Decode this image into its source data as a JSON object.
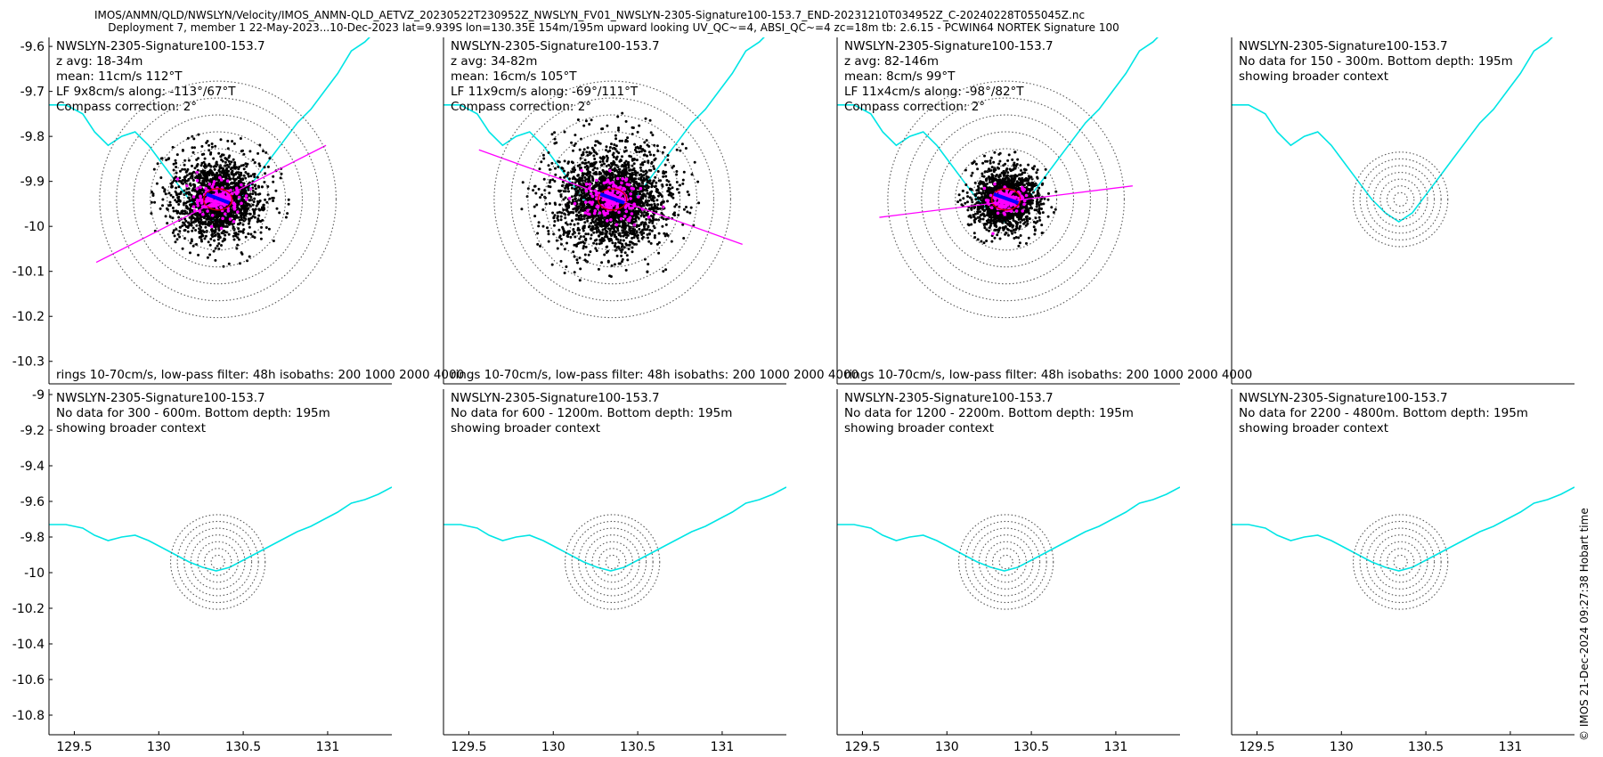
{
  "title": {
    "line1": "IMOS/ANMN/QLD/NWSLYN/Velocity/IMOS_ANMN-QLD_AETVZ_20230522T230952Z_NWSLYN_FV01_NWSLYN-2305-Signature100-153.7_END-20231210T034952Z_C-20240228T055045Z.nc",
    "line2": "Deployment 7, member 1 22-May-2023...10-Dec-2023 lat=9.939S lon=130.35E 154m/195m upward looking UV_QC~=4, ABSI_QC~=4 zc=18m tb: 2.6.15 - PCWIN64 NORTEK Signature 100"
  },
  "footer_stamp": "© IMOS 21-Dec-2024 09:27:38 Hobart time",
  "colors": {
    "scatter": "#000000",
    "highlight": "#ff00ff",
    "isobath": "#00e5e5",
    "mean_arrow": "#0000ff",
    "ellipse": "#cc0000",
    "rings": "#555555"
  },
  "chart_data": [
    {
      "type": "scatter",
      "panel": "top-1",
      "header": [
        "NWSLYN-2305-Signature100-153.7",
        "z avg: 18-34m",
        "mean: 11cm/s 112°T",
        "LF 9x8cm/s along: -113°/67°T",
        "Compass correction: 2°"
      ],
      "footer": "rings 10-70cm/s, low-pass filter: 48h isobaths: 200 1000 2000 4000",
      "xlim": [
        129.35,
        131.38
      ],
      "ylim": [
        -10.35,
        -9.58
      ],
      "yticks": [
        -9.6,
        -9.7,
        -9.8,
        -9.9,
        -10,
        -10.1,
        -10.2,
        -10.3
      ],
      "ytick_labels": [
        "-9.6",
        "-9.7",
        "-9.8",
        "-9.9",
        "-10",
        "-10.1",
        "-10.2",
        "-10.3"
      ],
      "center": [
        130.35,
        -9.94
      ],
      "ring_radius_deg": [
        0.2,
        0.3,
        0.4,
        0.5,
        0.6,
        0.7
      ],
      "cloud_radius_deg": 0.28,
      "cloud_count": 2600,
      "principal_axis_deg": 23,
      "axis_line": [
        [
          129.63,
          -10.08
        ],
        [
          130.99,
          -9.82
        ]
      ],
      "mean_arrow_deg": 22
    },
    {
      "type": "scatter",
      "panel": "top-2",
      "header": [
        "NWSLYN-2305-Signature100-153.7",
        "z avg: 34-82m",
        "mean: 16cm/s 105°T",
        "LF 11x9cm/s along: -69°/111°T",
        "Compass correction: 2°"
      ],
      "footer": "rings 10-70cm/s, low-pass filter: 48h isobaths: 200 1000 2000 4000",
      "xlim": [
        129.35,
        131.38
      ],
      "ylim": [
        -10.35,
        -9.58
      ],
      "center": [
        130.35,
        -9.94
      ],
      "ring_radius_deg": [
        0.2,
        0.3,
        0.4,
        0.5,
        0.6,
        0.7
      ],
      "cloud_radius_deg": 0.36,
      "cloud_count": 3200,
      "principal_axis_deg": -21,
      "axis_line": [
        [
          129.56,
          -9.83
        ],
        [
          131.12,
          -10.04
        ]
      ],
      "mean_arrow_deg": 15
    },
    {
      "type": "scatter",
      "panel": "top-3",
      "header": [
        "NWSLYN-2305-Signature100-153.7",
        "z avg: 82-146m",
        "mean: 8cm/s 99°T",
        "LF 11x4cm/s along: -98°/82°T",
        "Compass correction: 2°"
      ],
      "footer": "rings 10-70cm/s, low-pass filter: 48h isobaths: 200 1000 2000 4000",
      "xlim": [
        129.35,
        131.38
      ],
      "ylim": [
        -10.35,
        -9.58
      ],
      "center": [
        130.35,
        -9.94
      ],
      "ring_radius_deg": [
        0.2,
        0.3,
        0.4,
        0.5,
        0.6,
        0.7
      ],
      "cloud_radius_deg": 0.2,
      "cloud_count": 2400,
      "principal_axis_deg": 8,
      "axis_line": [
        [
          129.6,
          -9.98
        ],
        [
          131.1,
          -9.91
        ]
      ],
      "mean_arrow_deg": 9
    },
    {
      "type": "map",
      "panel": "top-4",
      "header": [
        "NWSLYN-2305-Signature100-153.7",
        "No data for 150 - 300m. Bottom depth: 195m",
        "showing broader context"
      ],
      "xlim": [
        129.35,
        131.38
      ],
      "ylim": [
        -10.35,
        -9.58
      ],
      "center": [
        130.35,
        -9.94
      ],
      "ring_radius_deg": [
        0.04,
        0.08,
        0.12,
        0.16,
        0.2,
        0.24,
        0.28
      ]
    },
    {
      "type": "map",
      "panel": "bottom-1",
      "header": [
        "NWSLYN-2305-Signature100-153.7",
        "No data for 300 - 600m. Bottom depth: 195m",
        "showing broader context"
      ],
      "xlim": [
        129.35,
        131.38
      ],
      "ylim": [
        -10.91,
        -8.97
      ],
      "yticks": [
        -9,
        -9.2,
        -9.4,
        -9.6,
        -9.8,
        -10,
        -10.2,
        -10.4,
        -10.6,
        -10.8
      ],
      "ytick_labels": [
        "-9",
        "-9.2",
        "-9.4",
        "-9.6",
        "-9.8",
        "-10",
        "-10.2",
        "-10.4",
        "-10.6",
        "-10.8"
      ],
      "xticks": [
        129.5,
        130,
        130.5,
        131
      ],
      "xtick_labels": [
        "129.5",
        "130",
        "130.5",
        "131"
      ],
      "center": [
        130.35,
        -9.94
      ],
      "ring_radius_deg": [
        0.04,
        0.08,
        0.12,
        0.16,
        0.2,
        0.24,
        0.28
      ]
    },
    {
      "type": "map",
      "panel": "bottom-2",
      "header": [
        "NWSLYN-2305-Signature100-153.7",
        "No data for 600 - 1200m. Bottom depth: 195m",
        "showing broader context"
      ],
      "xlim": [
        129.35,
        131.38
      ],
      "ylim": [
        -10.91,
        -8.97
      ],
      "xticks": [
        129.5,
        130,
        130.5,
        131
      ],
      "xtick_labels": [
        "129.5",
        "130",
        "130.5",
        "131"
      ],
      "center": [
        130.35,
        -9.94
      ],
      "ring_radius_deg": [
        0.04,
        0.08,
        0.12,
        0.16,
        0.2,
        0.24,
        0.28
      ]
    },
    {
      "type": "map",
      "panel": "bottom-3",
      "header": [
        "NWSLYN-2305-Signature100-153.7",
        "No data for 1200 - 2200m. Bottom depth: 195m",
        "showing broader context"
      ],
      "xlim": [
        129.35,
        131.38
      ],
      "ylim": [
        -10.91,
        -8.97
      ],
      "xticks": [
        129.5,
        130,
        130.5,
        131
      ],
      "xtick_labels": [
        "129.5",
        "130",
        "130.5",
        "131"
      ],
      "center": [
        130.35,
        -9.94
      ],
      "ring_radius_deg": [
        0.04,
        0.08,
        0.12,
        0.16,
        0.2,
        0.24,
        0.28
      ]
    },
    {
      "type": "map",
      "panel": "bottom-4",
      "header": [
        "NWSLYN-2305-Signature100-153.7",
        "No data for 2200 - 4800m. Bottom depth: 195m",
        "showing broader context"
      ],
      "xlim": [
        129.35,
        131.38
      ],
      "ylim": [
        -10.91,
        -8.97
      ],
      "xticks": [
        129.5,
        130,
        130.5,
        131
      ],
      "xtick_labels": [
        "129.5",
        "130",
        "130.5",
        "131"
      ],
      "center": [
        130.35,
        -9.94
      ],
      "ring_radius_deg": [
        0.04,
        0.08,
        0.12,
        0.16,
        0.2,
        0.24,
        0.28
      ]
    }
  ],
  "isobath_path_lonlat": [
    [
      129.35,
      -9.73
    ],
    [
      129.45,
      -9.73
    ],
    [
      129.55,
      -9.75
    ],
    [
      129.62,
      -9.79
    ],
    [
      129.7,
      -9.82
    ],
    [
      129.78,
      -9.8
    ],
    [
      129.86,
      -9.79
    ],
    [
      129.94,
      -9.82
    ],
    [
      130.02,
      -9.86
    ],
    [
      130.1,
      -9.9
    ],
    [
      130.18,
      -9.94
    ],
    [
      130.26,
      -9.97
    ],
    [
      130.34,
      -9.99
    ],
    [
      130.42,
      -9.97
    ],
    [
      130.5,
      -9.93
    ],
    [
      130.58,
      -9.89
    ],
    [
      130.66,
      -9.85
    ],
    [
      130.74,
      -9.81
    ],
    [
      130.82,
      -9.77
    ],
    [
      130.9,
      -9.74
    ],
    [
      130.98,
      -9.7
    ],
    [
      131.06,
      -9.66
    ],
    [
      131.14,
      -9.61
    ],
    [
      131.22,
      -9.59
    ],
    [
      131.3,
      -9.56
    ],
    [
      131.38,
      -9.52
    ]
  ]
}
